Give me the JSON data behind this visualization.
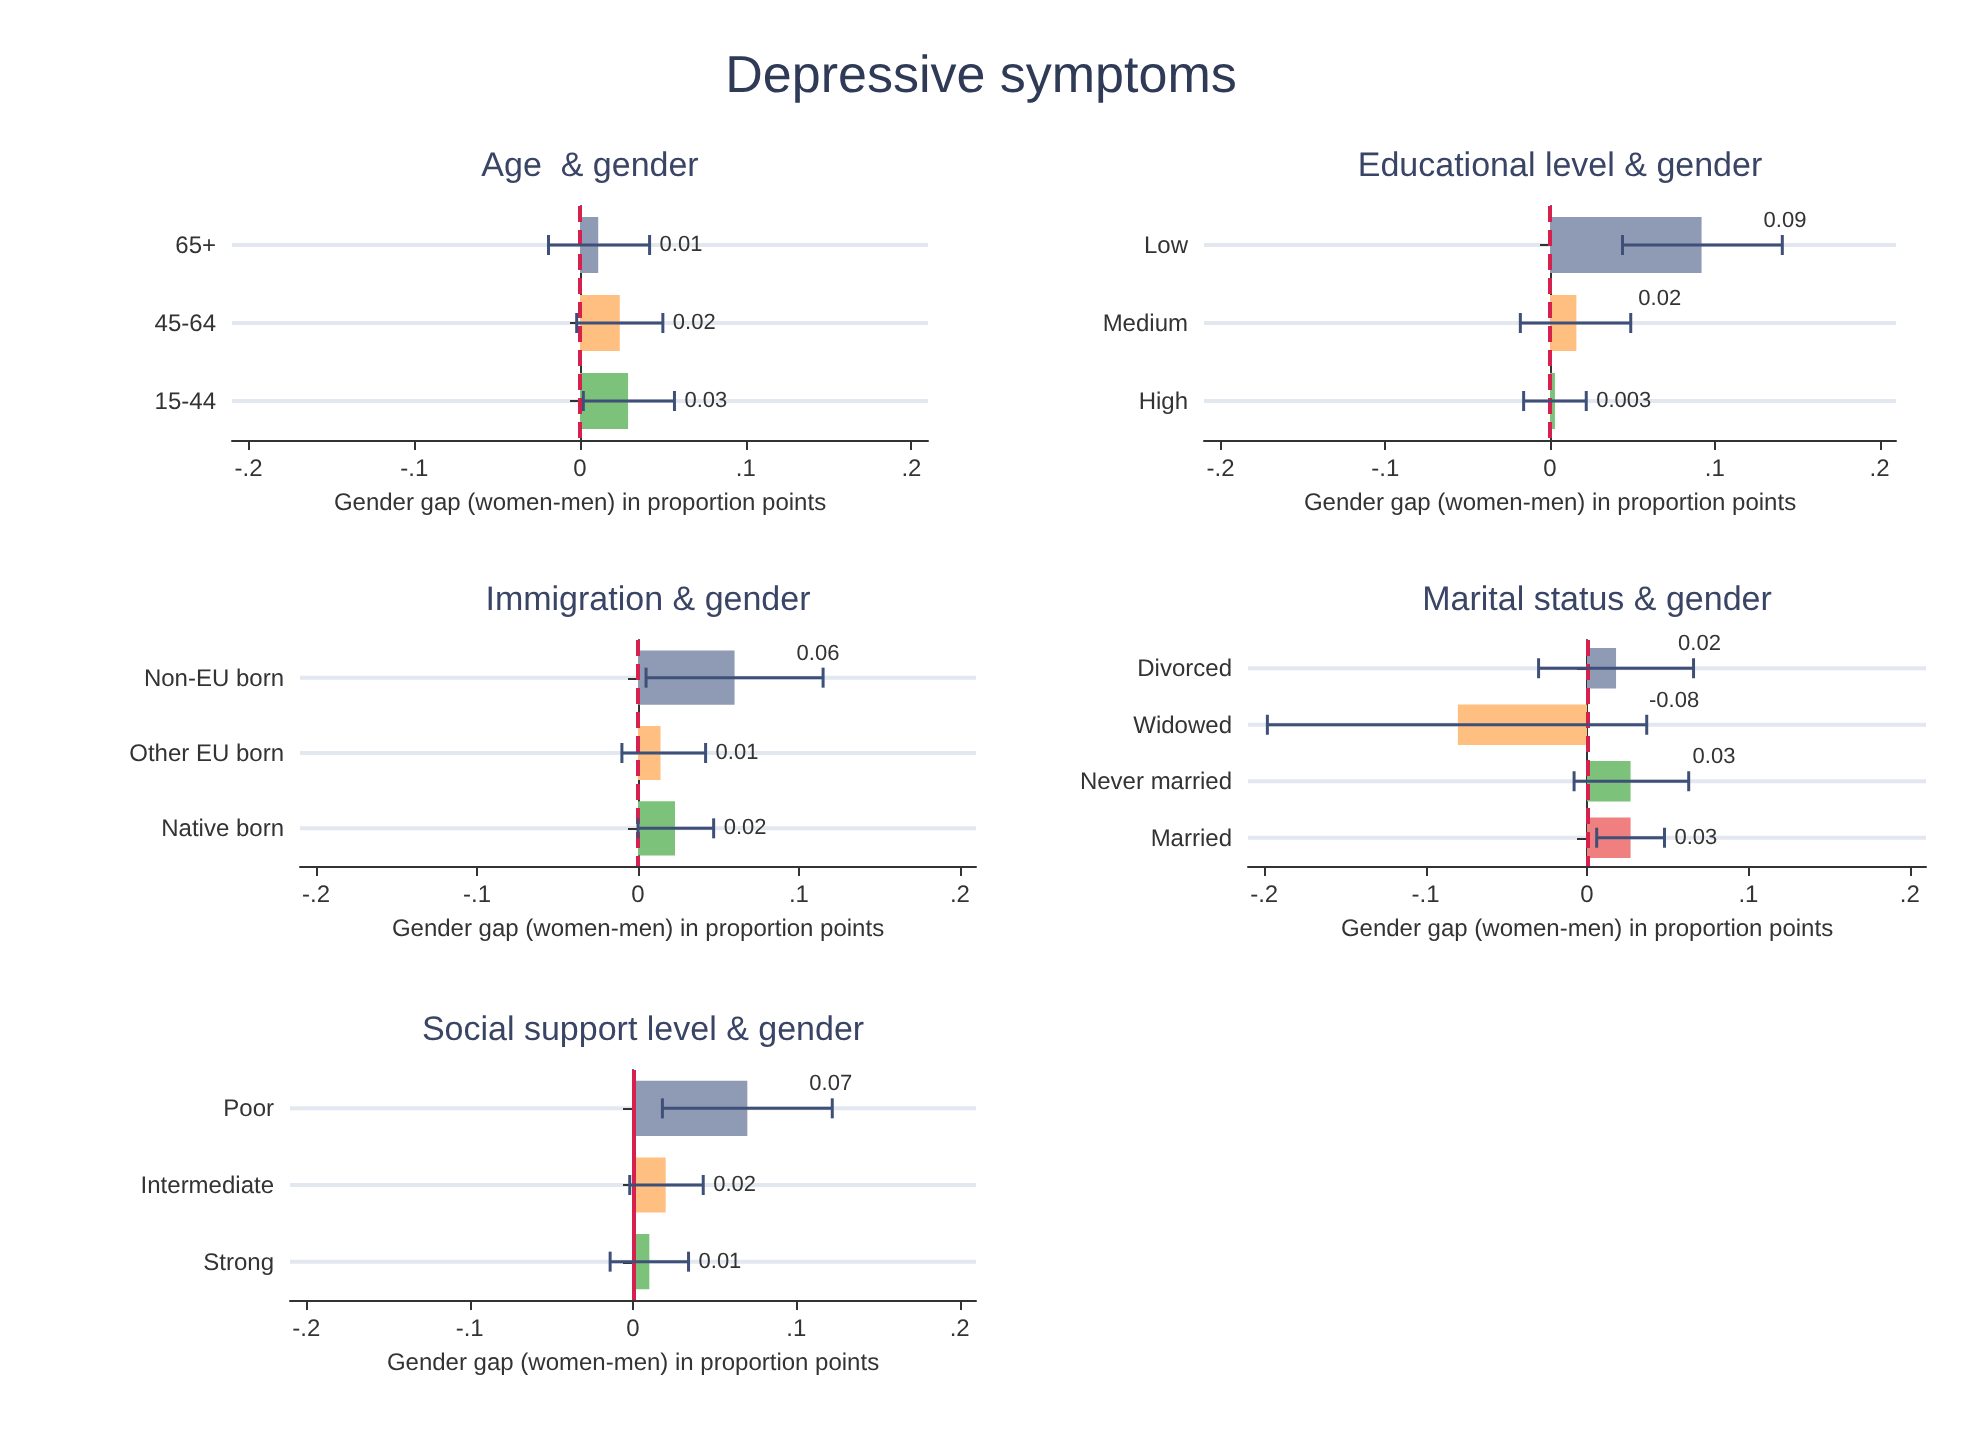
{
  "chart_data": [
    {
      "type": "other",
      "title": "Depressive symptoms"
    },
    {
      "type": "bar",
      "orientation": "horizontal",
      "title": "Age  & gender",
      "xlabel": "Gender gap (women-men) in proportion points",
      "categories": [
        "65+",
        "45-64",
        "15-44"
      ],
      "values": [
        0.011,
        0.024,
        0.029
      ],
      "errors": [
        [
          -0.019,
          0.042
        ],
        [
          -0.002,
          0.05
        ],
        [
          0.002,
          0.057
        ]
      ],
      "value_labels": [
        "0.01",
        "0.02",
        "0.03"
      ],
      "colors": [
        "#8f9ab5",
        "#ffbf80",
        "#7cc27a"
      ],
      "xlim": [
        -0.21,
        0.21
      ],
      "xticks": [
        {
          "value": -0.2,
          "label": "-.2"
        },
        {
          "value": -0.1,
          "label": "-.1"
        },
        {
          "value": 0,
          "label": "0"
        },
        {
          "value": 0.1,
          "label": ".1"
        },
        {
          "value": 0.2,
          "label": ".2"
        }
      ],
      "ref_lines": [
        {
          "axis": "x",
          "value": 0,
          "color": "#d6204e",
          "line_style": "dashed"
        }
      ],
      "grid": "y"
    },
    {
      "type": "bar",
      "orientation": "horizontal",
      "title": "Educational level & gender",
      "xlabel": "Gender gap (women-men) in proportion points",
      "categories": [
        "Low",
        "Medium",
        "High"
      ],
      "values": [
        0.092,
        0.016,
        0.003
      ],
      "errors": [
        [
          0.044,
          0.141
        ],
        [
          -0.018,
          0.049
        ],
        [
          -0.016,
          0.022
        ]
      ],
      "value_labels": [
        "0.09",
        "0.02",
        "0.003"
      ],
      "colors": [
        "#8f9ab5",
        "#ffbf80",
        "#7cc27a"
      ],
      "xlim": [
        -0.21,
        0.21
      ],
      "xticks": [
        {
          "value": -0.2,
          "label": "-.2"
        },
        {
          "value": -0.1,
          "label": "-.1"
        },
        {
          "value": 0,
          "label": "0"
        },
        {
          "value": 0.1,
          "label": ".1"
        },
        {
          "value": 0.2,
          "label": ".2"
        }
      ],
      "ref_lines": [
        {
          "axis": "x",
          "value": 0,
          "color": "#d6204e",
          "line_style": "dashed"
        }
      ],
      "grid": "y"
    },
    {
      "type": "bar",
      "orientation": "horizontal",
      "title": "Immigration & gender",
      "xlabel": "Gender gap (women-men) in proportion points",
      "categories": [
        "Non-EU born",
        "Other EU born",
        "Native born"
      ],
      "values": [
        0.06,
        0.014,
        0.023
      ],
      "errors": [
        [
          0.005,
          0.115
        ],
        [
          -0.01,
          0.042
        ],
        [
          0,
          0.047
        ]
      ],
      "value_labels": [
        "0.06",
        "0.01",
        "0.02"
      ],
      "colors": [
        "#8f9ab5",
        "#ffbf80",
        "#7cc27a"
      ],
      "xlim": [
        -0.21,
        0.21
      ],
      "xticks": [
        {
          "value": -0.2,
          "label": "-.2"
        },
        {
          "value": -0.1,
          "label": "-.1"
        },
        {
          "value": 0,
          "label": "0"
        },
        {
          "value": 0.1,
          "label": ".1"
        },
        {
          "value": 0.2,
          "label": ".2"
        }
      ],
      "ref_lines": [
        {
          "axis": "x",
          "value": 0,
          "color": "#d6204e",
          "line_style": "dashed"
        }
      ],
      "grid": "y"
    },
    {
      "type": "bar",
      "orientation": "horizontal",
      "title": "Marital status & gender",
      "xlabel": "Gender gap (women-men) in proportion points",
      "categories": [
        "Divorced",
        "Widowed",
        "Never married",
        "Married"
      ],
      "values": [
        0.018,
        -0.08,
        0.027,
        0.027
      ],
      "errors": [
        [
          -0.03,
          0.066
        ],
        [
          -0.198,
          0.037
        ],
        [
          -0.008,
          0.063
        ],
        [
          0.006,
          0.048
        ]
      ],
      "value_labels": [
        "0.02",
        "-0.08",
        "0.03",
        "0.03"
      ],
      "colors": [
        "#8f9ab5",
        "#ffbf80",
        "#7cc27a",
        "#f08080"
      ],
      "xlim": [
        -0.21,
        0.21
      ],
      "xticks": [
        {
          "value": -0.2,
          "label": "-.2"
        },
        {
          "value": -0.1,
          "label": "-.1"
        },
        {
          "value": 0,
          "label": "0"
        },
        {
          "value": 0.1,
          "label": ".1"
        },
        {
          "value": 0.2,
          "label": ".2"
        }
      ],
      "ref_lines": [
        {
          "axis": "x",
          "value": 0,
          "color": "#d6204e",
          "line_style": "dashed"
        }
      ],
      "grid": "y"
    },
    {
      "type": "bar",
      "orientation": "horizontal",
      "title": "Social support level & gender",
      "xlabel": "Gender gap (women-men) in proportion points",
      "categories": [
        "Poor",
        "Intermediate",
        "Strong"
      ],
      "values": [
        0.07,
        0.02,
        0.01
      ],
      "errors": [
        [
          0.018,
          0.122
        ],
        [
          -0.002,
          0.043
        ],
        [
          -0.014,
          0.034
        ]
      ],
      "value_labels": [
        "0.07",
        "0.02",
        "0.01"
      ],
      "colors": [
        "#8f9ab5",
        "#ffbf80",
        "#7cc27a"
      ],
      "xlim": [
        -0.21,
        0.21
      ],
      "xticks": [
        {
          "value": -0.2,
          "label": "-.2"
        },
        {
          "value": -0.1,
          "label": "-.1"
        },
        {
          "value": 0,
          "label": "0"
        },
        {
          "value": 0.1,
          "label": ".1"
        },
        {
          "value": 0.2,
          "label": ".2"
        }
      ],
      "ref_lines": [
        {
          "axis": "x",
          "value": 0,
          "color": "#d6204e",
          "line_style": "solid"
        }
      ],
      "grid": "y"
    }
  ]
}
